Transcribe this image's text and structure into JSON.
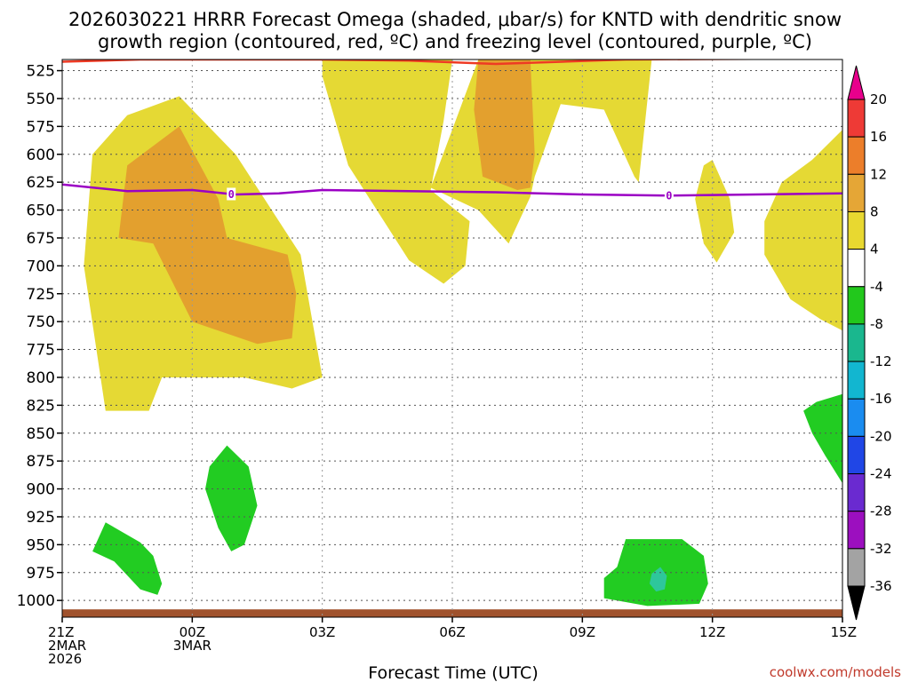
{
  "chart_data": {
    "type": "heatmap",
    "title_lines": [
      "2026030221 HRRR Forecast Omega (shaded, μbar/s) for KNTD with dendritic snow",
      "growth region (contoured, red, ºC) and freezing level (contoured, purple, ºC)"
    ],
    "xlabel": "Forecast Time (UTC)",
    "ylabel": "",
    "y_axis": {
      "unit": "hPa",
      "inverted": true,
      "ylim": [
        515,
        1015
      ],
      "ticks": [
        525,
        550,
        575,
        600,
        625,
        650,
        675,
        700,
        725,
        750,
        775,
        800,
        825,
        850,
        875,
        900,
        925,
        950,
        975,
        1000
      ]
    },
    "x_axis": {
      "xlim": [
        0,
        18
      ],
      "ticks": [
        {
          "x": 0,
          "lines": [
            "21Z",
            "2MAR",
            "2026"
          ]
        },
        {
          "x": 3,
          "lines": [
            "00Z",
            "3MAR"
          ]
        },
        {
          "x": 6,
          "lines": [
            "03Z"
          ]
        },
        {
          "x": 9,
          "lines": [
            "06Z"
          ]
        },
        {
          "x": 12,
          "lines": [
            "09Z"
          ]
        },
        {
          "x": 15,
          "lines": [
            "12Z"
          ]
        },
        {
          "x": 18,
          "lines": [
            "15Z"
          ]
        }
      ]
    },
    "grid": true,
    "colorbar": {
      "levels": [
        20,
        16,
        12,
        8,
        4,
        -4,
        -8,
        -12,
        -16,
        -20,
        -24,
        -28,
        -32,
        -36
      ],
      "colors": [
        "#e8008c",
        "#ee3a36",
        "#ec7e2a",
        "#e5a636",
        "#e8d830",
        "#ffffff",
        "#22c81c",
        "#1ab78e",
        "#12b6d0",
        "#1a8cf0",
        "#2046e6",
        "#6a2ad0",
        "#9c0fbf",
        "#a3a3a3",
        "#000000"
      ]
    },
    "colors": {
      "omega_4_8": "#e5d934",
      "omega_8_12": "#e3a02e",
      "omega_neg4_neg8": "#22cc22",
      "omega_neg8_neg12": "#2ec79b",
      "dgz_contour": "#ee3a24",
      "freezing_contour": "#9b00c4",
      "terrain": "#a0522d"
    },
    "freezing_level": {
      "label": "0",
      "label_x": [
        3.9,
        14.0
      ],
      "points": [
        [
          0,
          627
        ],
        [
          1.5,
          633
        ],
        [
          3,
          632
        ],
        [
          4,
          636
        ],
        [
          5,
          635
        ],
        [
          6,
          632
        ],
        [
          8,
          633
        ],
        [
          10,
          634
        ],
        [
          12,
          636
        ],
        [
          14,
          637
        ],
        [
          16,
          636
        ],
        [
          18,
          635
        ]
      ]
    },
    "dgz_contour": {
      "points": [
        [
          0,
          517
        ],
        [
          1.8,
          515
        ],
        [
          6,
          515
        ],
        [
          8,
          516
        ],
        [
          10,
          519
        ],
        [
          13,
          515
        ],
        [
          18,
          514
        ]
      ]
    },
    "terrain_pressure": 1008,
    "regions": [
      {
        "name": "west-yellow",
        "class": "omega_4_8",
        "points": [
          [
            1.0,
            830
          ],
          [
            0.5,
            700
          ],
          [
            0.7,
            600
          ],
          [
            1.5,
            565
          ],
          [
            2.7,
            548
          ],
          [
            4.0,
            600
          ],
          [
            5.5,
            690
          ],
          [
            6.0,
            800
          ],
          [
            5.3,
            810
          ],
          [
            4.2,
            800
          ],
          [
            2.3,
            800
          ],
          [
            2.0,
            830
          ]
        ]
      },
      {
        "name": "west-orange",
        "class": "omega_8_12",
        "points": [
          [
            1.3,
            675
          ],
          [
            1.5,
            610
          ],
          [
            2.7,
            575
          ],
          [
            3.6,
            640
          ],
          [
            3.8,
            675
          ],
          [
            5.2,
            690
          ],
          [
            5.4,
            725
          ],
          [
            5.3,
            765
          ],
          [
            4.5,
            770
          ],
          [
            3.0,
            750
          ],
          [
            2.1,
            680
          ]
        ]
      },
      {
        "name": "center-yellow",
        "class": "omega_4_8",
        "points": [
          [
            6.0,
            515
          ],
          [
            9.0,
            515
          ],
          [
            8.8,
            570
          ],
          [
            8.5,
            632
          ],
          [
            9.4,
            660
          ],
          [
            9.3,
            700
          ],
          [
            8.8,
            716
          ],
          [
            8.0,
            695
          ],
          [
            6.6,
            610
          ],
          [
            6.0,
            530
          ]
        ]
      },
      {
        "name": "center-right-yellow",
        "class": "omega_4_8",
        "points": [
          [
            9.6,
            515
          ],
          [
            13.6,
            515
          ],
          [
            13.3,
            625
          ],
          [
            13.2,
            620
          ],
          [
            12.5,
            560
          ],
          [
            11.5,
            555
          ],
          [
            10.9,
            620
          ],
          [
            10.8,
            638
          ],
          [
            10.3,
            680
          ],
          [
            9.6,
            650
          ],
          [
            8.5,
            630
          ]
        ]
      },
      {
        "name": "center-orange",
        "class": "omega_8_12",
        "points": [
          [
            9.6,
            515
          ],
          [
            10.8,
            515
          ],
          [
            10.9,
            600
          ],
          [
            10.8,
            630
          ],
          [
            10.5,
            632
          ],
          [
            9.7,
            620
          ],
          [
            9.5,
            560
          ]
        ]
      },
      {
        "name": "small-yellow-12z",
        "class": "omega_4_8",
        "points": [
          [
            15.0,
            605
          ],
          [
            15.4,
            640
          ],
          [
            15.5,
            670
          ],
          [
            15.1,
            697
          ],
          [
            14.8,
            680
          ],
          [
            14.6,
            640
          ],
          [
            14.8,
            610
          ]
        ]
      },
      {
        "name": "east-yellow",
        "class": "omega_4_8",
        "points": [
          [
            18.0,
            578
          ],
          [
            18.0,
            758
          ],
          [
            17.5,
            748
          ],
          [
            16.8,
            730
          ],
          [
            16.2,
            690
          ],
          [
            16.2,
            660
          ],
          [
            16.6,
            625
          ],
          [
            17.3,
            605
          ]
        ]
      },
      {
        "name": "green-sw",
        "class": "omega_neg4_neg8",
        "points": [
          [
            0.7,
            956
          ],
          [
            1.0,
            930
          ],
          [
            1.8,
            948
          ],
          [
            2.1,
            960
          ],
          [
            2.3,
            985
          ],
          [
            2.2,
            995
          ],
          [
            1.8,
            990
          ],
          [
            1.2,
            965
          ]
        ]
      },
      {
        "name": "green-00z",
        "class": "omega_neg4_neg8",
        "points": [
          [
            3.4,
            880
          ],
          [
            3.8,
            861
          ],
          [
            4.3,
            880
          ],
          [
            4.5,
            915
          ],
          [
            4.2,
            950
          ],
          [
            3.9,
            956
          ],
          [
            3.6,
            935
          ],
          [
            3.3,
            900
          ]
        ]
      },
      {
        "name": "green-10z",
        "class": "omega_neg4_neg8",
        "points": [
          [
            12.5,
            980
          ],
          [
            12.8,
            970
          ],
          [
            13.0,
            945
          ],
          [
            14.3,
            945
          ],
          [
            14.8,
            960
          ],
          [
            14.9,
            985
          ],
          [
            14.7,
            1003
          ],
          [
            13.5,
            1005
          ],
          [
            12.5,
            998
          ]
        ]
      },
      {
        "name": "teal-10z",
        "class": "omega_neg8_neg12",
        "points": [
          [
            13.6,
            976
          ],
          [
            13.8,
            970
          ],
          [
            13.95,
            978
          ],
          [
            13.9,
            990
          ],
          [
            13.7,
            992
          ],
          [
            13.55,
            985
          ]
        ]
      },
      {
        "name": "green-east",
        "class": "omega_neg4_neg8",
        "points": [
          [
            18.0,
            815
          ],
          [
            18.0,
            895
          ],
          [
            17.6,
            870
          ],
          [
            17.3,
            850
          ],
          [
            17.1,
            830
          ],
          [
            17.4,
            822
          ]
        ]
      }
    ]
  },
  "credit": "coolwx.com/models"
}
